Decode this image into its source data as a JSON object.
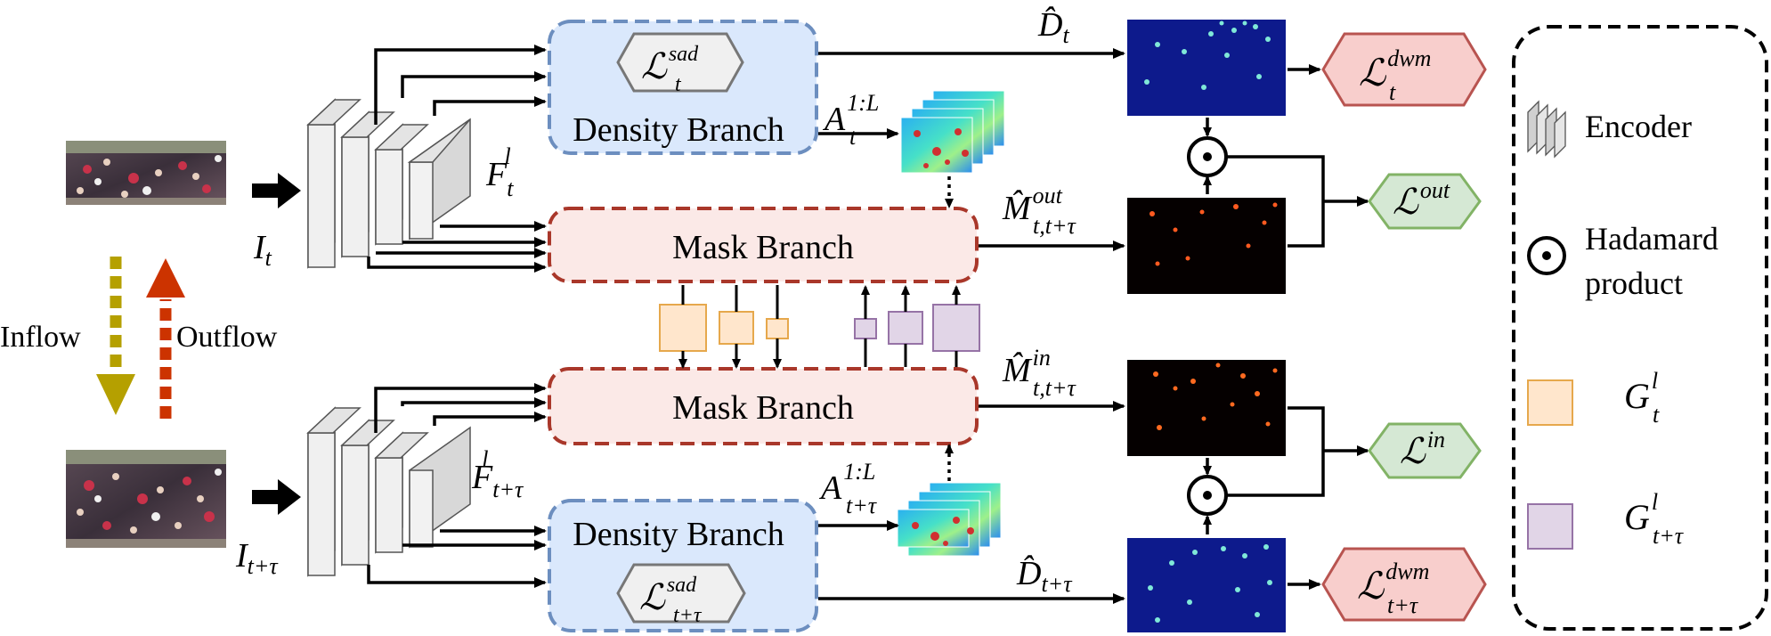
{
  "branches": {
    "density_top": "Density Branch",
    "density_bottom": "Density Branch",
    "mask_top": "Mask Branch",
    "mask_bottom": "Mask Branch"
  },
  "frames": {
    "top_input": {
      "base": "I",
      "sub": "t"
    },
    "bottom_input": {
      "base": "I",
      "sub": "t+τ"
    },
    "top_feature": {
      "base": "F",
      "sub": "t",
      "sup": "l"
    },
    "bottom_feature": {
      "base": "F",
      "sub": "t+τ",
      "sup": "l"
    }
  },
  "flows": {
    "inflow": "Inflow",
    "outflow": "Outflow"
  },
  "outputs": {
    "d_top": {
      "base": "D̂",
      "sub": "t"
    },
    "d_bottom": {
      "base": "D̂",
      "sub": "t+τ"
    },
    "m_out": {
      "base": "M̂",
      "sub": "t,t+τ",
      "sup": "out"
    },
    "m_in": {
      "base": "M̂",
      "sub": "t,t+τ",
      "sup": "in"
    },
    "a_top": {
      "base": "A",
      "sub": "t",
      "sup": "1:L"
    },
    "a_bottom": {
      "base": "A",
      "sub": "t+τ",
      "sup": "1:L"
    }
  },
  "losses": {
    "sad_top": {
      "base": "ℒ",
      "sub": "t",
      "sup": "sad"
    },
    "sad_bottom": {
      "base": "ℒ",
      "sub": "t+τ",
      "sup": "sad"
    },
    "dwm_top": {
      "base": "ℒ",
      "sub": "t",
      "sup": "dwm"
    },
    "dwm_bottom": {
      "base": "ℒ",
      "sub": "t+τ",
      "sup": "dwm"
    },
    "out": {
      "base": "ℒ",
      "sup": "out"
    },
    "in": {
      "base": "ℒ",
      "sup": "in"
    }
  },
  "legend": {
    "encoder": "Encoder",
    "hadamard_line1": "Hadamard",
    "hadamard_line2": "product",
    "g_t": {
      "base": "G",
      "sub": "t",
      "sup": "l"
    },
    "g_ttau": {
      "base": "G",
      "sub": "t+τ",
      "sup": "l"
    }
  },
  "colors": {
    "density_fill": "#dae8fc",
    "density_stroke": "#6c8ebf",
    "mask_fill": "#fbe9e7",
    "mask_stroke": "#a9372a",
    "dwm_fill": "#f8cecc",
    "dwm_stroke": "#b85450",
    "inout_fill": "#d5e8d4",
    "inout_stroke": "#82b366",
    "g_t_fill": "#ffe6cc",
    "g_t_stroke": "#e6a84c",
    "g_ttau_fill": "#e1d5e7",
    "g_ttau_stroke": "#9673a6",
    "inflow_arrow": "#b5a000",
    "outflow_arrow": "#cc3300",
    "density_map_bg": "#0d1a8c"
  }
}
